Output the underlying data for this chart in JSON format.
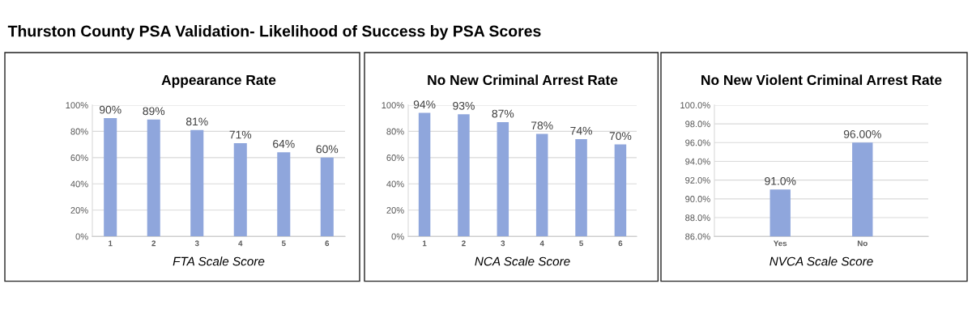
{
  "chart_data": [
    {
      "type": "bar",
      "title": "Appearance Rate",
      "xlabel": "FTA Scale Score",
      "annotations": [
        "Thurston County PSA Validation- Likelihood of Success by PSA Scores"
      ],
      "categories": [
        "1",
        "2",
        "3",
        "4",
        "5",
        "6"
      ],
      "values": [
        90,
        89,
        81,
        71,
        64,
        60
      ],
      "value_labels": [
        "90%",
        "89%",
        "81%",
        "71%",
        "64%",
        "60%"
      ],
      "color": "#8fa6dc",
      "ylim": [
        0,
        100
      ],
      "yticks": [
        {
          "value": 0,
          "label": "0%"
        },
        {
          "value": 20,
          "label": "20%"
        },
        {
          "value": 40,
          "label": "40%"
        },
        {
          "value": 60,
          "label": "60%"
        },
        {
          "value": 80,
          "label": "80%"
        },
        {
          "value": 100,
          "label": "100%"
        }
      ],
      "grid": "y"
    },
    {
      "type": "bar",
      "title": "No New Criminal Arrest Rate",
      "xlabel": "NCA Scale Score",
      "categories": [
        "1",
        "2",
        "3",
        "4",
        "5",
        "6"
      ],
      "values": [
        94,
        93,
        87,
        78,
        74,
        70
      ],
      "value_labels": [
        "94%",
        "93%",
        "87%",
        "78%",
        "74%",
        "70%"
      ],
      "color": "#8fa6dc",
      "ylim": [
        0,
        100
      ],
      "yticks": [
        {
          "value": 0,
          "label": "0%"
        },
        {
          "value": 20,
          "label": "20%"
        },
        {
          "value": 40,
          "label": "40%"
        },
        {
          "value": 60,
          "label": "60%"
        },
        {
          "value": 80,
          "label": "80%"
        },
        {
          "value": 100,
          "label": "100%"
        }
      ],
      "grid": "y"
    },
    {
      "type": "bar",
      "title": "No New Violent Criminal Arrest Rate",
      "xlabel": "NVCA Scale Score",
      "categories": [
        "Yes",
        "No"
      ],
      "values": [
        91,
        96
      ],
      "value_labels": [
        "91.0%",
        "96.00%"
      ],
      "color": "#8fa6dc",
      "ylim": [
        86,
        100
      ],
      "yticks": [
        {
          "value": 86,
          "label": "86.0%"
        },
        {
          "value": 88,
          "label": "88.0%"
        },
        {
          "value": 90,
          "label": "90.0%"
        },
        {
          "value": 92,
          "label": "92.0%"
        },
        {
          "value": 94,
          "label": "94.0%"
        },
        {
          "value": 96,
          "label": "96.0%"
        },
        {
          "value": 98,
          "label": "98.0%"
        },
        {
          "value": 100,
          "label": "100.0%"
        }
      ],
      "grid": "y"
    }
  ]
}
